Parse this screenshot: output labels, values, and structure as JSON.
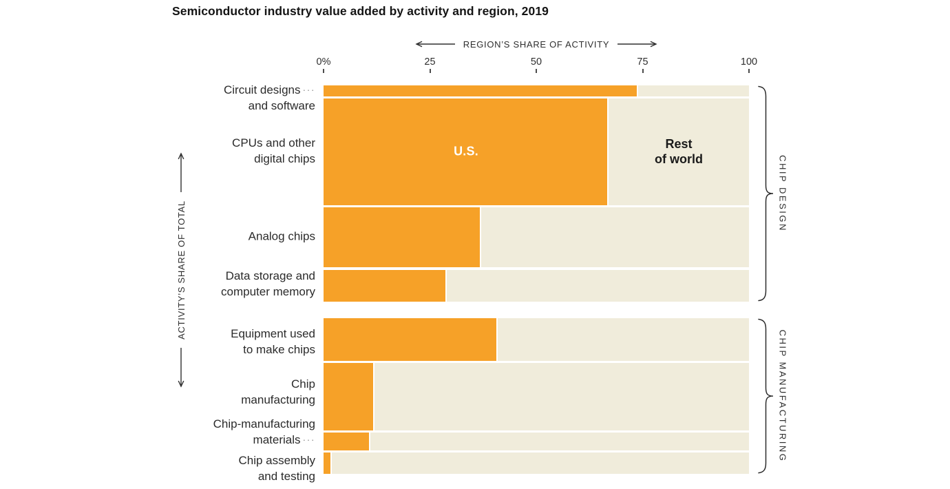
{
  "chart_data": {
    "type": "bar",
    "variant": "mekko-stacked-share",
    "title": "Semiconductor industry value added by activity and region, 2019",
    "x_axis": {
      "label": "REGION’S SHARE OF ACTIVITY",
      "tick_labels": [
        "0%",
        "25",
        "50",
        "75",
        "100"
      ],
      "tick_values": [
        0,
        25,
        50,
        75,
        100
      ],
      "range": [
        0,
        100
      ],
      "unit": "percent"
    },
    "y_axis": {
      "label": "ACTIVITY’S SHARE OF TOTAL"
    },
    "region_labels": {
      "us": "U.S.",
      "rest_line1": "Rest",
      "rest_line2": "of world"
    },
    "leader_glyph": "···",
    "colors": {
      "us": "#F6A128",
      "rest": "#F0ECDB",
      "text_dark": "#141414",
      "axis_text": "#2e2e2e"
    },
    "groups": [
      {
        "label": "CHIP DESIGN",
        "row_indexes": [
          0,
          1,
          2,
          3
        ]
      },
      {
        "label": "CHIP MANUFACTURING",
        "row_indexes": [
          4,
          5,
          6,
          7
        ]
      }
    ],
    "rows": [
      {
        "label_lines": [
          "Circuit designs",
          "and software"
        ],
        "leader_after_line": 1,
        "us_share_pct": 74,
        "share_of_total_pct": 3
      },
      {
        "label_lines": [
          "CPUs and other",
          "digital chips"
        ],
        "us_share_pct": 67,
        "share_of_total_pct": 30
      },
      {
        "label_lines": [
          "Analog chips"
        ],
        "us_share_pct": 37,
        "share_of_total_pct": 17
      },
      {
        "label_lines": [
          "Data storage and",
          "computer memory"
        ],
        "us_share_pct": 29,
        "share_of_total_pct": 9
      },
      {
        "label_lines": [
          "Equipment used",
          "to make chips"
        ],
        "us_share_pct": 41,
        "share_of_total_pct": 12
      },
      {
        "label_lines": [
          "Chip",
          "manufacturing"
        ],
        "us_share_pct": 12,
        "share_of_total_pct": 19
      },
      {
        "label_lines": [
          "Chip-manufacturing",
          "materials"
        ],
        "leader_after_line": 2,
        "us_share_pct": 11,
        "share_of_total_pct": 5
      },
      {
        "label_lines": [
          "Chip assembly",
          "and testing"
        ],
        "us_share_pct": 2,
        "share_of_total_pct": 6
      }
    ]
  }
}
